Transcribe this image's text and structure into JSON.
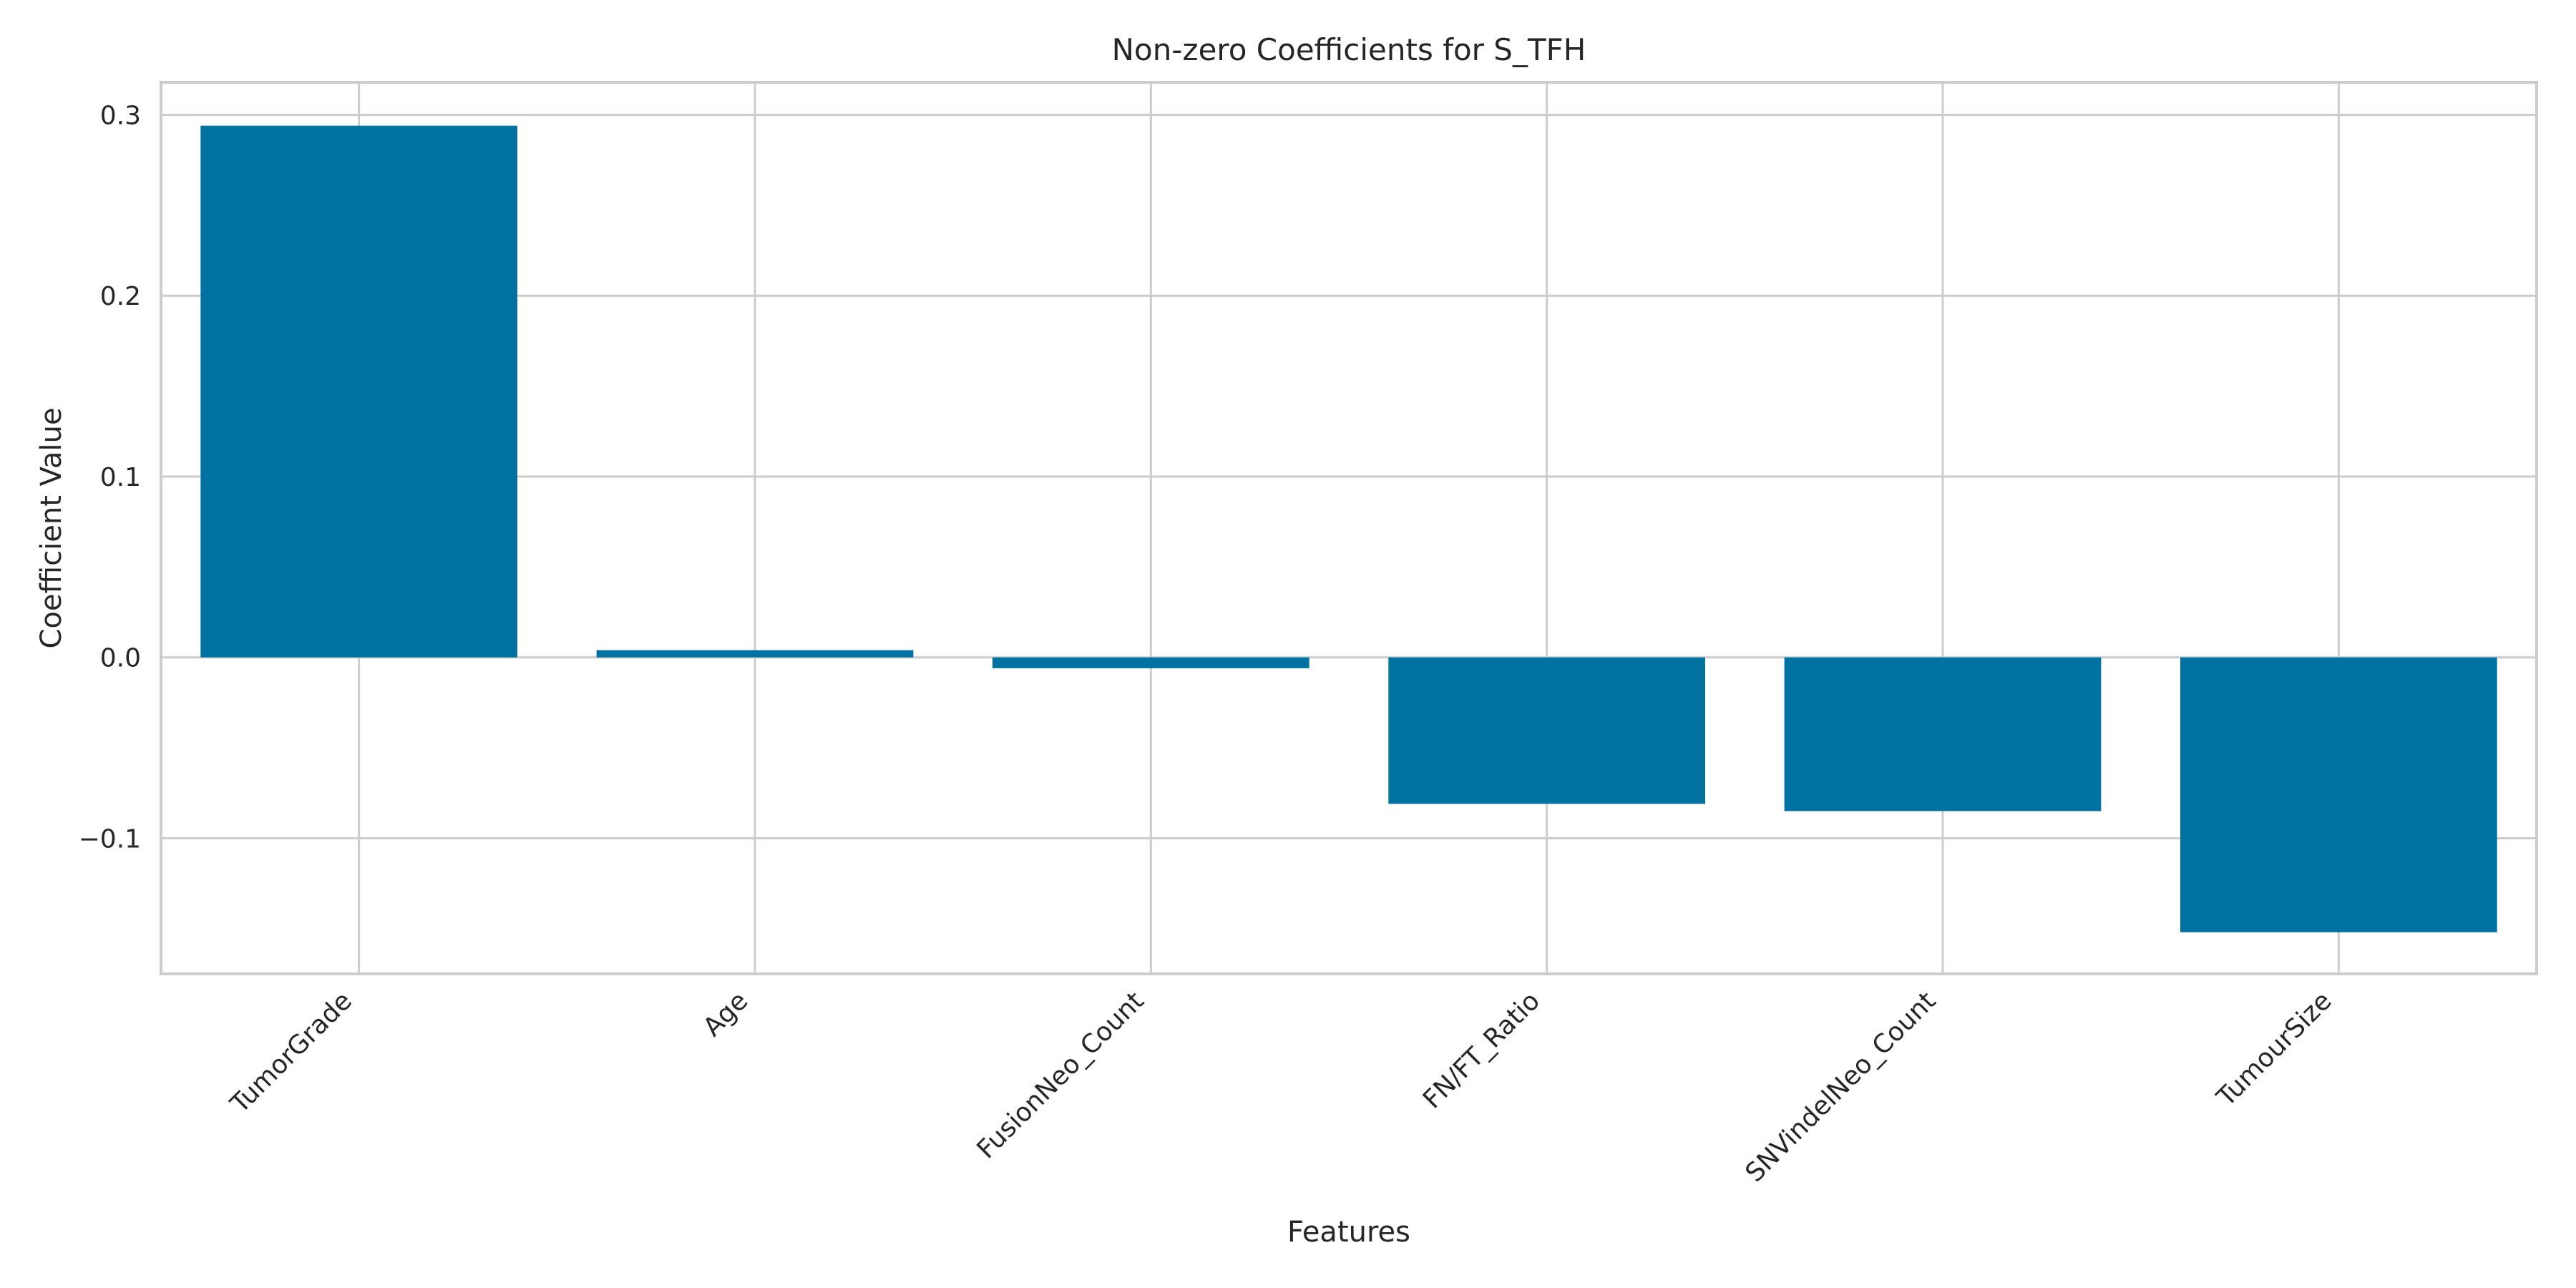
{
  "chart_data": {
    "type": "bar",
    "title": "Non-zero Coefficients for S_TFH",
    "xlabel": "Features",
    "ylabel": "Coefficient Value",
    "categories": [
      "TumorGrade",
      "Age",
      "FusionNeo_Count",
      "FN/FT_Ratio",
      "SNVindelNeo_Count",
      "TumourSize"
    ],
    "values": [
      0.294,
      0.004,
      -0.006,
      -0.081,
      -0.085,
      -0.152
    ],
    "ylim": [
      -0.175,
      0.318
    ],
    "yticks": [
      -0.1,
      0.0,
      0.1,
      0.2,
      0.3
    ],
    "ytick_labels": [
      "−0.1",
      "0.0",
      "0.1",
      "0.2",
      "0.3"
    ],
    "bar_color": "#0072a2",
    "grid": true,
    "legend": "none"
  }
}
